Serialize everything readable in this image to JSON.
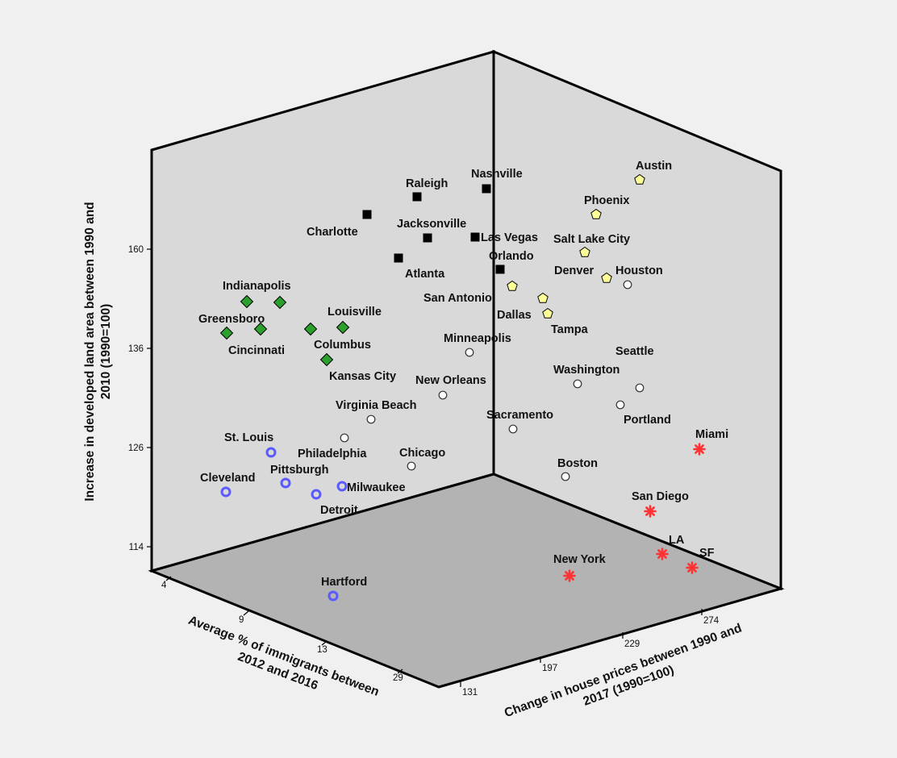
{
  "chart_data": {
    "type": "scatter",
    "projection": "3d",
    "title": "",
    "xlabel": "Average % of immigrants between 2012 and 2016",
    "ylabel": "Increase in developed land area between 1990 and 2010 (1990=100)",
    "zlabel": "Change in house prices between 1990 and 2017 (1990=100)",
    "xlabel_lines": [
      "Average % of immigrants between",
      "2012 and 2016"
    ],
    "ylabel_lines": [
      "Increase in developed land area between 1990 and",
      "2010 (1990=100)"
    ],
    "zlabel_lines": [
      "Change in house prices between 1990 and",
      "2017 (1990=100)"
    ],
    "x_ticks": [
      "4",
      "9",
      "13",
      "29"
    ],
    "y_ticks": [
      "114",
      "126",
      "136",
      "160"
    ],
    "z_ticks": [
      "131",
      "197",
      "229",
      "274"
    ],
    "legend": "none",
    "colors": {
      "cluster_black": "#000000",
      "cluster_yellow": "#ffff99",
      "cluster_green": "#2ca02c",
      "cluster_blue": "#5a5aff",
      "cluster_red": "#ff3333",
      "cluster_gray": "#ffffff",
      "panel": "#d9d9d9",
      "floor": "#b3b3b3"
    },
    "points": [
      {
        "city": "Nashville",
        "cluster": "black",
        "marker": "square",
        "label": "Nashville"
      },
      {
        "city": "Raleigh",
        "cluster": "black",
        "marker": "square",
        "label": "Raleigh"
      },
      {
        "city": "Charlotte",
        "cluster": "black",
        "marker": "square",
        "label": "Charlotte"
      },
      {
        "city": "Jacksonville",
        "cluster": "black",
        "marker": "square",
        "label": "Jacksonville"
      },
      {
        "city": "Las Vegas",
        "cluster": "black",
        "marker": "square",
        "label": "Las Vegas"
      },
      {
        "city": "Atlanta",
        "cluster": "black",
        "marker": "square",
        "label": "Atlanta"
      },
      {
        "city": "Orlando",
        "cluster": "black",
        "marker": "square",
        "label": "Orlando"
      },
      {
        "city": "Austin",
        "cluster": "yellow",
        "marker": "pentagon",
        "label": "Austin"
      },
      {
        "city": "Phoenix",
        "cluster": "yellow",
        "marker": "pentagon",
        "label": "Phoenix"
      },
      {
        "city": "Salt Lake City",
        "cluster": "yellow",
        "marker": "pentagon",
        "label": "Salt Lake City"
      },
      {
        "city": "Denver",
        "cluster": "yellow",
        "marker": "pentagon",
        "label": "Denver"
      },
      {
        "city": "San Antonio",
        "cluster": "yellow",
        "marker": "pentagon",
        "label": "San Antonio"
      },
      {
        "city": "Dallas",
        "cluster": "yellow",
        "marker": "pentagon",
        "label": "Dallas"
      },
      {
        "city": "Tampa",
        "cluster": "yellow",
        "marker": "pentagon",
        "label": "Tampa"
      },
      {
        "city": "Indianapolis",
        "cluster": "green",
        "marker": "diamond",
        "label": "Indianapolis"
      },
      {
        "city": "Indianapolis-2",
        "cluster": "green",
        "marker": "diamond",
        "label": ""
      },
      {
        "city": "Greensboro",
        "cluster": "green",
        "marker": "diamond",
        "label": "Greensboro"
      },
      {
        "city": "Louisville",
        "cluster": "green",
        "marker": "diamond",
        "label": "Louisville"
      },
      {
        "city": "Columbus",
        "cluster": "green",
        "marker": "diamond",
        "label": "Columbus"
      },
      {
        "city": "Cincinnati",
        "cluster": "green",
        "marker": "diamond",
        "label": "Cincinnati"
      },
      {
        "city": "Kansas City",
        "cluster": "green",
        "marker": "diamond",
        "label": "Kansas City"
      },
      {
        "city": "Houston",
        "cluster": "gray",
        "marker": "circle",
        "label": "Houston"
      },
      {
        "city": "Minneapolis",
        "cluster": "gray",
        "marker": "circle",
        "label": "Minneapolis"
      },
      {
        "city": "New Orleans",
        "cluster": "gray",
        "marker": "circle",
        "label": "New Orleans"
      },
      {
        "city": "Virginia Beach",
        "cluster": "gray",
        "marker": "circle",
        "label": "Virginia Beach"
      },
      {
        "city": "Philadelphia",
        "cluster": "gray",
        "marker": "circle",
        "label": "Philadelphia"
      },
      {
        "city": "Chicago",
        "cluster": "gray",
        "marker": "circle",
        "label": "Chicago"
      },
      {
        "city": "Washington",
        "cluster": "gray",
        "marker": "circle",
        "label": "Washington"
      },
      {
        "city": "Seattle",
        "cluster": "gray",
        "marker": "circle",
        "label": "Seattle"
      },
      {
        "city": "Portland",
        "cluster": "gray",
        "marker": "circle",
        "label": "Portland"
      },
      {
        "city": "Sacramento",
        "cluster": "gray",
        "marker": "circle",
        "label": "Sacramento"
      },
      {
        "city": "Boston",
        "cluster": "gray",
        "marker": "circle",
        "label": "Boston"
      },
      {
        "city": "St. Louis",
        "cluster": "blue",
        "marker": "ring",
        "label": "St. Louis"
      },
      {
        "city": "Cleveland",
        "cluster": "blue",
        "marker": "ring",
        "label": "Cleveland"
      },
      {
        "city": "Pittsburgh",
        "cluster": "blue",
        "marker": "ring",
        "label": "Pittsburgh"
      },
      {
        "city": "Detroit",
        "cluster": "blue",
        "marker": "ring",
        "label": "Detroit"
      },
      {
        "city": "Milwaukee",
        "cluster": "blue",
        "marker": "ring",
        "label": "Milwaukee"
      },
      {
        "city": "Hartford",
        "cluster": "blue",
        "marker": "ring",
        "label": "Hartford"
      },
      {
        "city": "Miami",
        "cluster": "red",
        "marker": "asterisk",
        "label": "Miami"
      },
      {
        "city": "San Diego",
        "cluster": "red",
        "marker": "asterisk",
        "label": "San Diego"
      },
      {
        "city": "LA",
        "cluster": "red",
        "marker": "asterisk",
        "label": "LA"
      },
      {
        "city": "SF",
        "cluster": "red",
        "marker": "asterisk",
        "label": "SF"
      },
      {
        "city": "New York",
        "cluster": "red",
        "marker": "asterisk",
        "label": "New York"
      }
    ]
  }
}
